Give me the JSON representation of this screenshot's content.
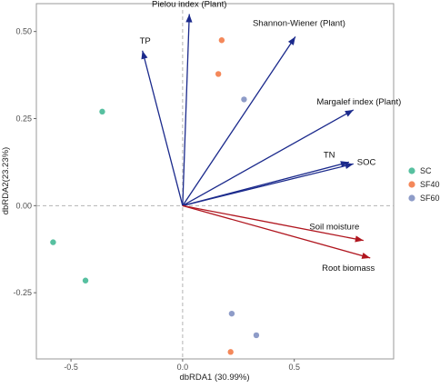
{
  "chart_data": {
    "type": "scatter",
    "title": "",
    "xlabel": "dbRDA1 (30.99%)",
    "ylabel": "dbRDA2(23.23%)",
    "xlim": [
      -0.655,
      0.945
    ],
    "ylim": [
      -0.44,
      0.58
    ],
    "x_ticks": [
      -0.5,
      0,
      0.5
    ],
    "x_tick_labels": [
      "-0.5",
      "0.0",
      "0.5"
    ],
    "y_ticks": [
      -0.25,
      0,
      0.25,
      0.5
    ],
    "y_tick_labels": [
      "-0.25",
      "0.00",
      "0.25",
      "0.50"
    ],
    "zero_lines": true,
    "legend_position": "right",
    "series": [
      {
        "name": "SC",
        "color": "#57C0A0",
        "points": [
          [
            -0.36,
            0.27
          ],
          [
            -0.58,
            -0.105
          ],
          [
            -0.435,
            -0.215
          ]
        ]
      },
      {
        "name": "SF40",
        "color": "#F4885A",
        "points": [
          [
            0.175,
            0.475
          ],
          [
            0.16,
            0.378
          ],
          [
            0.215,
            -0.42
          ]
        ]
      },
      {
        "name": "SF60",
        "color": "#8E9CC8",
        "points": [
          [
            0.275,
            0.305
          ],
          [
            0.22,
            -0.31
          ],
          [
            0.33,
            -0.372
          ]
        ]
      }
    ],
    "vectors": [
      {
        "label": "Pielou index (Plant)",
        "x": 0.03,
        "y": 0.55,
        "color": "#1B2A8C"
      },
      {
        "label": "TP",
        "x": -0.18,
        "y": 0.445,
        "color": "#1B2A8C"
      },
      {
        "label": "Shannon-Wiener (Plant)",
        "x": 0.505,
        "y": 0.485,
        "color": "#1B2A8C"
      },
      {
        "label": "Margalef index (Plant)",
        "x": 0.765,
        "y": 0.275,
        "color": "#1B2A8C"
      },
      {
        "label": "TN",
        "x": 0.745,
        "y": 0.125,
        "color": "#1B2A8C"
      },
      {
        "label": "SOC",
        "x": 0.765,
        "y": 0.12,
        "color": "#1B2A8C"
      },
      {
        "label": "Soil moisture",
        "x": 0.81,
        "y": -0.1,
        "color": "#B0151E"
      },
      {
        "label": "Root biomass",
        "x": 0.84,
        "y": -0.15,
        "color": "#B0151E"
      }
    ]
  }
}
